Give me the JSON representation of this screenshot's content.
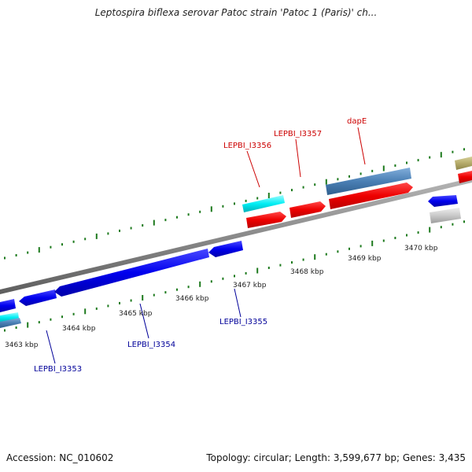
{
  "title": "Leptospira biflexa serovar Patoc strain 'Patoc 1 (Paris)' ch...",
  "footer": {
    "accession": "Accession: NC_010602",
    "summary": "Topology: circular; Length: 3,599,677 bp; Genes: 3,435"
  },
  "colors": {
    "backbone": "#8a8a8a",
    "tick": "#1d7a1d",
    "forward_gene": "#ee0000",
    "reverse_gene": "#0000ee",
    "forward_label": "#cc0000",
    "reverse_label": "#000099"
  },
  "kbp_labels": [
    "3463 kbp",
    "3464 kbp",
    "3465 kbp",
    "3466 kbp",
    "3467 kbp",
    "3468 kbp",
    "3469 kbp",
    "3470 kbp"
  ],
  "gene_labels": {
    "forward": [
      "LEPBI_I3356",
      "LEPBI_I3357",
      "dapE"
    ],
    "reverse": [
      "LEPBI_I3353",
      "LEPBI_I3354",
      "LEPBI_I3355"
    ]
  }
}
